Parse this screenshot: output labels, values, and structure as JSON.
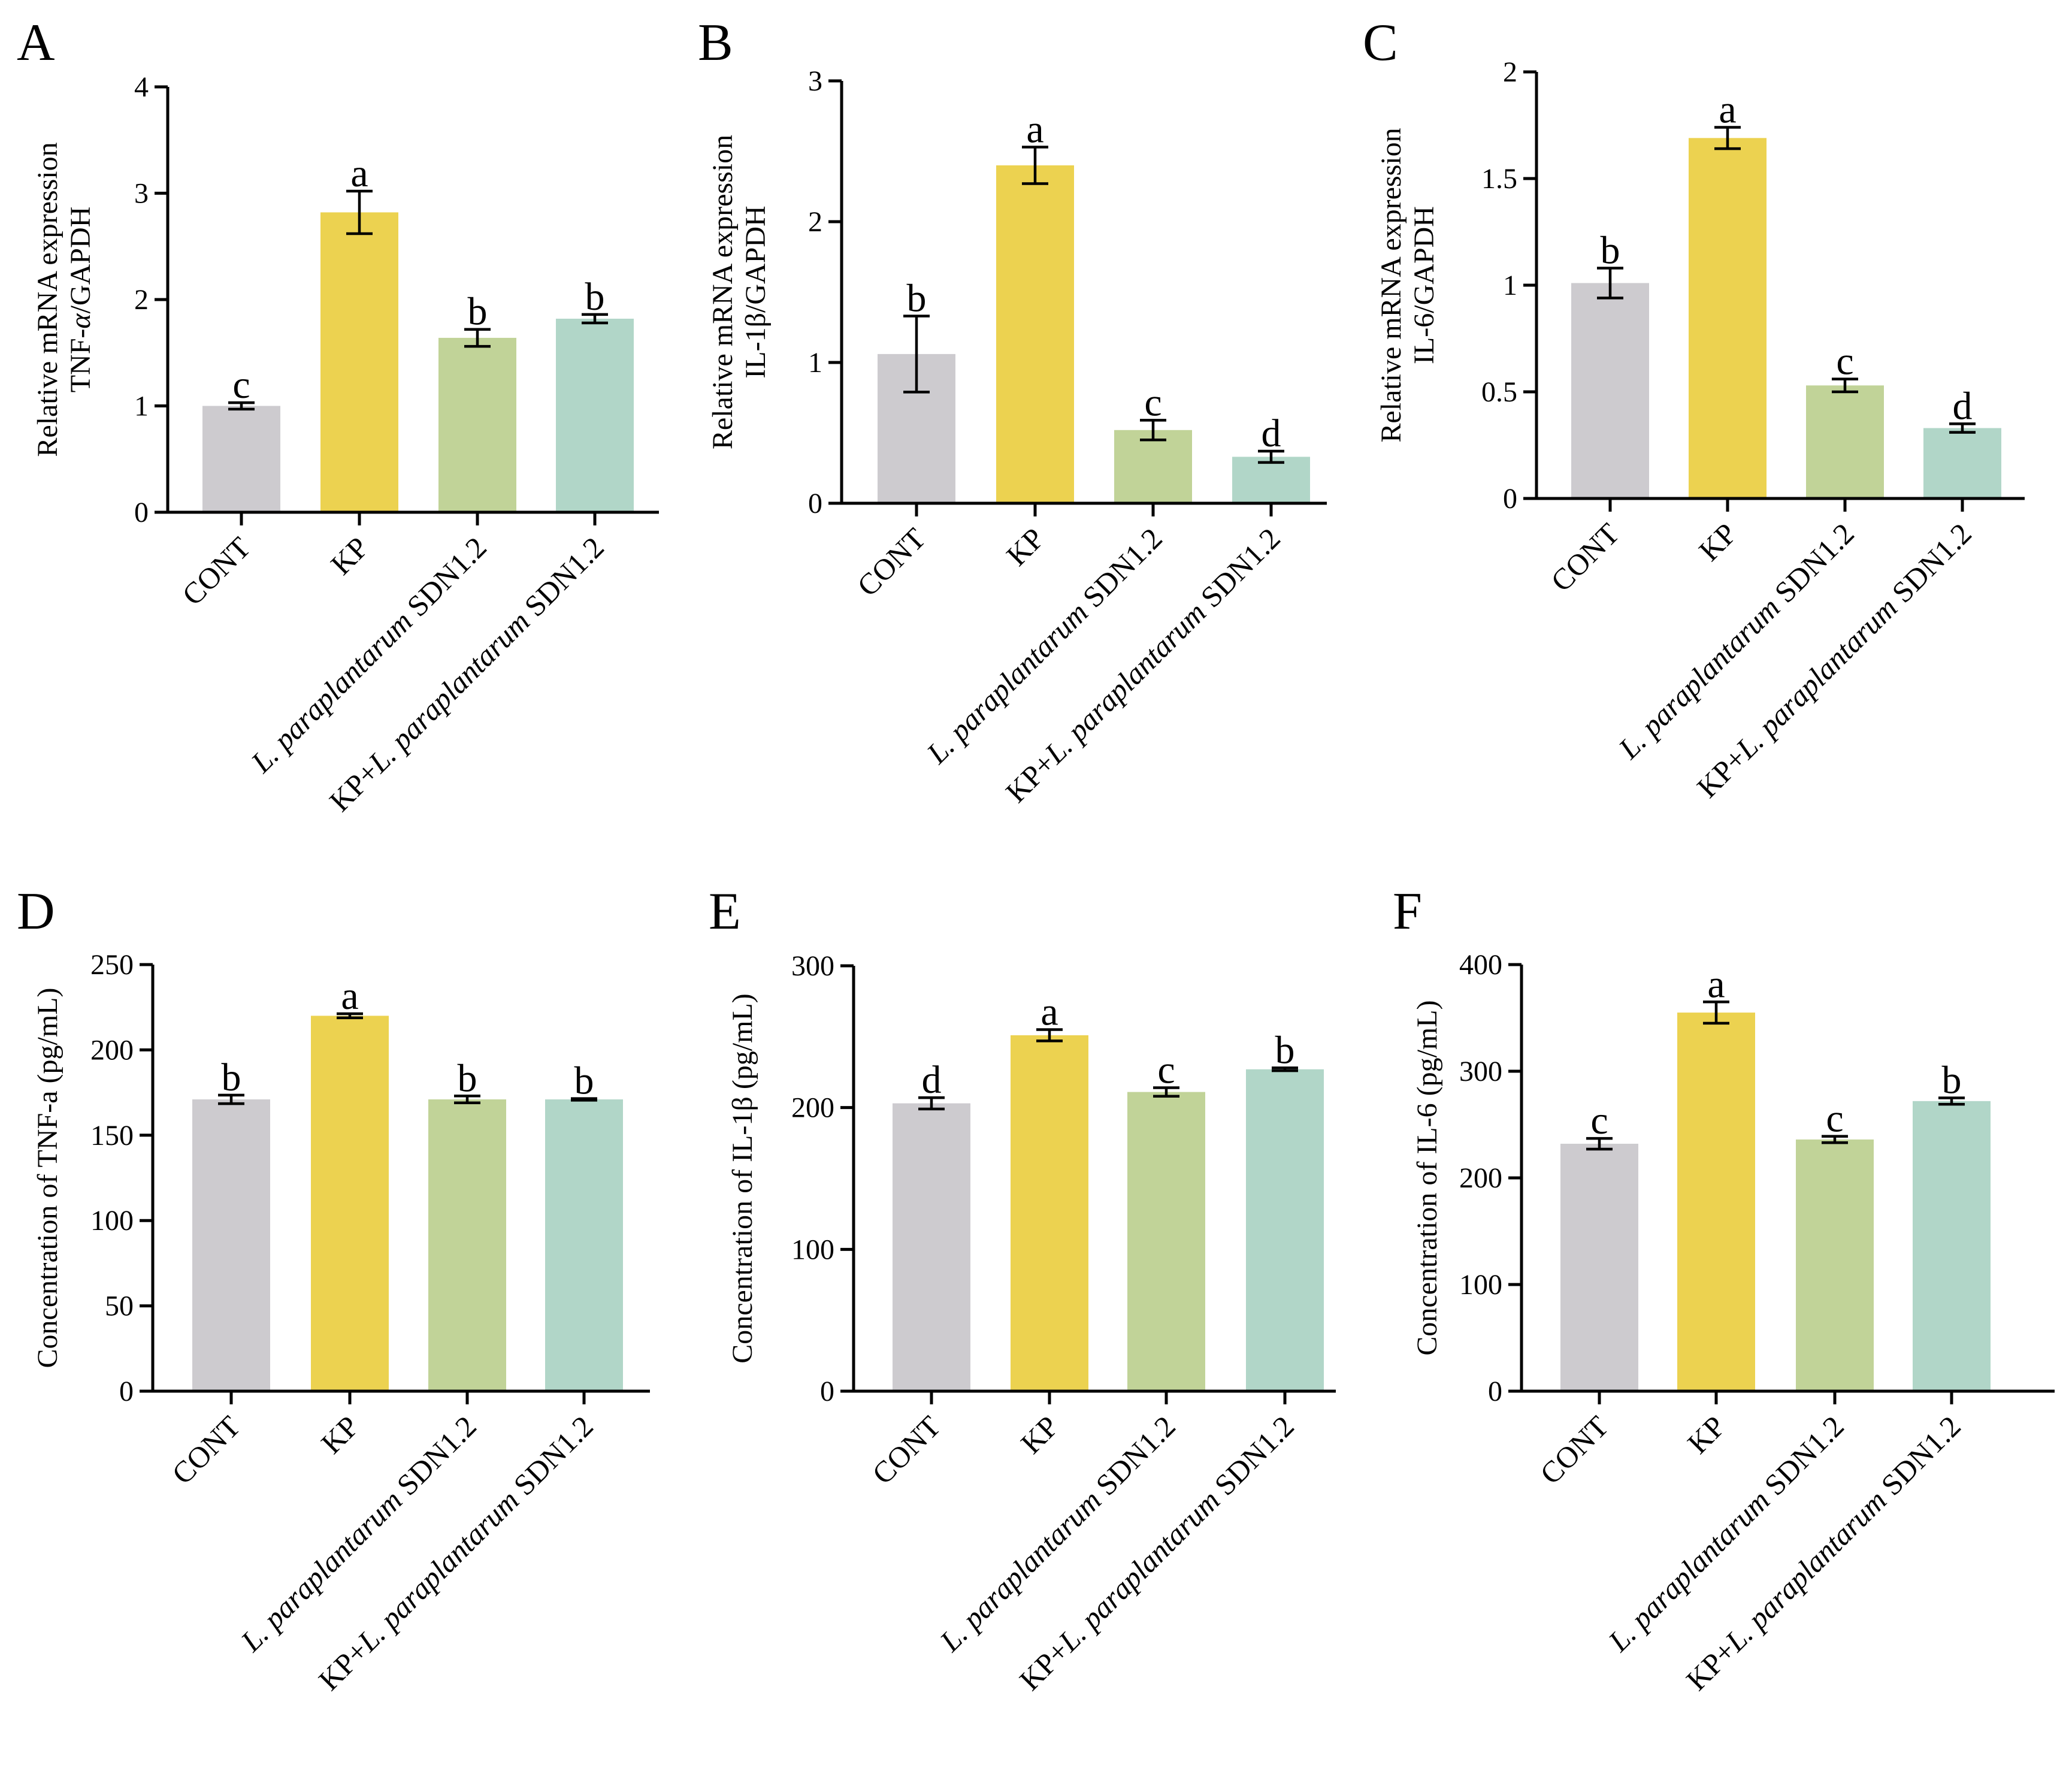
{
  "figure": {
    "colors": [
      "#cdcbcf",
      "#ecd250",
      "#c1d398",
      "#b1d6c8"
    ],
    "categories": [
      {
        "pre": "",
        "italic": "",
        "post": "CONT"
      },
      {
        "pre": "",
        "italic": "",
        "post": "KP"
      },
      {
        "pre": "",
        "italic": "L. paraplantarum",
        "post": " SDN1.2"
      },
      {
        "pre": "KP+",
        "italic": "L. paraplantarum",
        "post": " SDN1.2"
      }
    ]
  },
  "chart_data": [
    {
      "panel": "A",
      "type": "bar",
      "ylabel_line1": "Relative mRNA expression",
      "ylabel_line2_pre": "TNF-",
      "ylabel_line2_italic": "α",
      "ylabel_line2_post": "/GAPDH",
      "ylim": [
        0,
        4
      ],
      "yticks": [
        0,
        1,
        2,
        3,
        4
      ],
      "ytick_labels": [
        "0",
        "1",
        "2",
        "3",
        "4"
      ],
      "values": [
        1.0,
        2.82,
        1.64,
        1.82
      ],
      "errors": [
        0.03,
        0.2,
        0.08,
        0.04
      ],
      "significance": [
        "c",
        "a",
        "b",
        "b"
      ]
    },
    {
      "panel": "B",
      "type": "bar",
      "ylabel_line1": "Relative mRNA expression",
      "ylabel_line2_pre": "IL-1β/GAPDH",
      "ylabel_line2_italic": "",
      "ylabel_line2_post": "",
      "ylim": [
        0,
        3
      ],
      "yticks": [
        0,
        1,
        2,
        3
      ],
      "ytick_labels": [
        "0",
        "1",
        "2",
        "3"
      ],
      "values": [
        1.06,
        2.4,
        0.52,
        0.33
      ],
      "errors": [
        0.27,
        0.13,
        0.07,
        0.04
      ],
      "significance": [
        "b",
        "a",
        "c",
        "d"
      ]
    },
    {
      "panel": "C",
      "type": "bar",
      "ylabel_line1": "Relative mRNA expression",
      "ylabel_line2_pre": "IL-6/GAPDH",
      "ylabel_line2_italic": "",
      "ylabel_line2_post": "",
      "ylim": [
        0,
        2
      ],
      "yticks": [
        0,
        0.5,
        1,
        1.5,
        2
      ],
      "ytick_labels": [
        "0",
        "0.5",
        "1",
        "1.5",
        "2"
      ],
      "values": [
        1.01,
        1.69,
        0.53,
        0.33
      ],
      "errors": [
        0.07,
        0.05,
        0.03,
        0.02
      ],
      "significance": [
        "b",
        "a",
        "c",
        "d"
      ]
    },
    {
      "panel": "D",
      "type": "bar",
      "ylabel_line1": "Concentration of TNF-a (pg/mL)",
      "ylim": [
        0,
        250
      ],
      "yticks": [
        0,
        50,
        100,
        150,
        200,
        250
      ],
      "ytick_labels": [
        "0",
        "50",
        "100",
        "150",
        "200",
        "250"
      ],
      "values": [
        171,
        220,
        171,
        171
      ],
      "errors": [
        2.5,
        1.2,
        2.0,
        0.5
      ],
      "significance": [
        "b",
        "a",
        "b",
        "b"
      ]
    },
    {
      "panel": "E",
      "type": "bar",
      "ylabel_line1": "Concentration of IL-1β (pg/mL)",
      "ylim": [
        0,
        300
      ],
      "yticks": [
        0,
        100,
        200,
        300
      ],
      "ytick_labels": [
        "0",
        "100",
        "200",
        "300"
      ],
      "values": [
        203,
        251,
        211,
        227
      ],
      "errors": [
        4,
        4,
        3,
        1
      ],
      "significance": [
        "d",
        "a",
        "c",
        "b"
      ]
    },
    {
      "panel": "F",
      "type": "bar",
      "ylabel_line1": "Concentration of IL-6 (pg/mL)",
      "ylim": [
        0,
        400
      ],
      "yticks": [
        0,
        100,
        200,
        300,
        400
      ],
      "ytick_labels": [
        "0",
        "100",
        "200",
        "300",
        "400"
      ],
      "values": [
        232,
        355,
        236,
        272
      ],
      "errors": [
        5,
        10,
        3,
        3
      ],
      "significance": [
        "c",
        "a",
        "c",
        "b"
      ]
    }
  ]
}
